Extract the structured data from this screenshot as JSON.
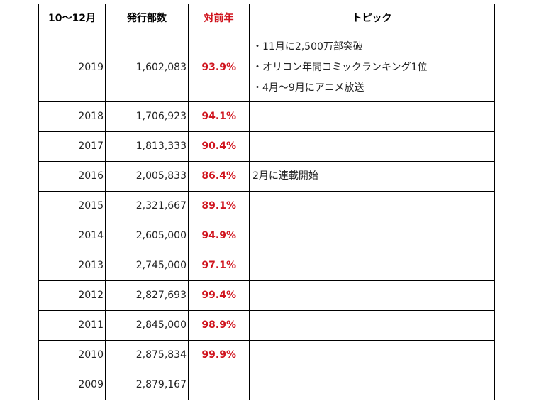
{
  "table": {
    "headers": {
      "period": "10～12月",
      "copies": "発行部数",
      "yoy": "対前年",
      "topic": "トピック"
    },
    "accent_color": "#d0141e",
    "rows": [
      {
        "year": "2019",
        "copies": "1,602,083",
        "yoy": "93.9%",
        "topics": [
          "・11月に2,500万部突破",
          "・オリコン年間コミックランキング1位",
          "・4月～9月にアニメ放送"
        ]
      },
      {
        "year": "2018",
        "copies": "1,706,923",
        "yoy": "94.1%",
        "topics": []
      },
      {
        "year": "2017",
        "copies": "1,813,333",
        "yoy": "90.4%",
        "topics": []
      },
      {
        "year": "2016",
        "copies": "2,005,833",
        "yoy": "86.4%",
        "topics": [
          "2月に連載開始"
        ]
      },
      {
        "year": "2015",
        "copies": "2,321,667",
        "yoy": "89.1%",
        "topics": []
      },
      {
        "year": "2014",
        "copies": "2,605,000",
        "yoy": "94.9%",
        "topics": []
      },
      {
        "year": "2013",
        "copies": "2,745,000",
        "yoy": "97.1%",
        "topics": []
      },
      {
        "year": "2012",
        "copies": "2,827,693",
        "yoy": "99.4%",
        "topics": []
      },
      {
        "year": "2011",
        "copies": "2,845,000",
        "yoy": "98.9%",
        "topics": []
      },
      {
        "year": "2010",
        "copies": "2,875,834",
        "yoy": "99.9%",
        "topics": []
      },
      {
        "year": "2009",
        "copies": "2,879,167",
        "yoy": "",
        "topics": []
      }
    ]
  }
}
